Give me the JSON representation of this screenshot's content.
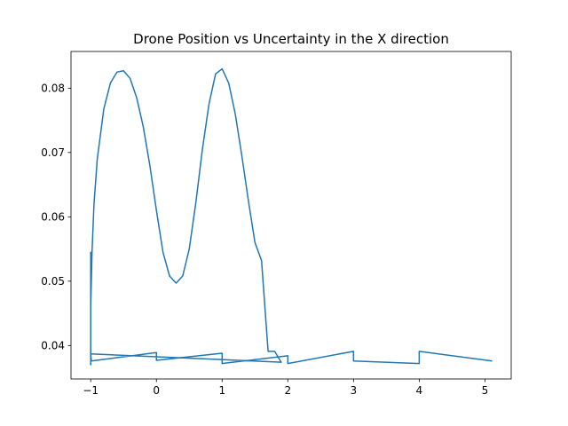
{
  "chart_data": {
    "type": "line",
    "title": "Drone Position vs Uncertainty in the X direction",
    "xlabel": "",
    "ylabel": "",
    "xlim": [
      -1.3,
      5.4
    ],
    "ylim": [
      0.0348,
      0.0857
    ],
    "xticks": [
      -1,
      0,
      1,
      2,
      3,
      4,
      5
    ],
    "xtick_labels": [
      "−1",
      "0",
      "1",
      "2",
      "3",
      "4",
      "5"
    ],
    "yticks": [
      0.04,
      0.05,
      0.06,
      0.07,
      0.08
    ],
    "ytick_labels": [
      "0.04",
      "0.05",
      "0.06",
      "0.07",
      "0.08"
    ],
    "grid": false,
    "legend": "none",
    "series": [
      {
        "color": "#1f77b4",
        "x": [
          -1.0,
          -1.0,
          -1.0,
          -1.0,
          -1.0,
          -1.0,
          -1.0,
          -0.98,
          -0.95,
          -0.9,
          -0.8,
          -0.7,
          -0.6,
          -0.5,
          -0.4,
          -0.3,
          -0.2,
          -0.1,
          0.0,
          0.1,
          0.2,
          0.3,
          0.4,
          0.5,
          0.6,
          0.7,
          0.8,
          0.9,
          1.0,
          1.1,
          1.2,
          1.3,
          1.4,
          1.5,
          1.6,
          1.7,
          1.8,
          1.9,
          -1.0,
          -0.99,
          0.0,
          0.0,
          1.0,
          1.0,
          2.0,
          2.0,
          3.0,
          3.0,
          4.0,
          4.0,
          5.1
        ],
        "y": [
          0.0385,
          0.037,
          0.0545,
          0.038,
          0.054,
          0.045,
          0.046,
          0.0545,
          0.062,
          0.069,
          0.0768,
          0.0808,
          0.0825,
          0.0827,
          0.0815,
          0.0785,
          0.074,
          0.068,
          0.061,
          0.0545,
          0.0508,
          0.0497,
          0.0508,
          0.055,
          0.0622,
          0.0705,
          0.0775,
          0.0822,
          0.083,
          0.0808,
          0.076,
          0.0695,
          0.0625,
          0.056,
          0.0532,
          0.0391,
          0.0391,
          0.0374,
          0.0387,
          0.0376,
          0.0389,
          0.0377,
          0.0388,
          0.0372,
          0.0384,
          0.0372,
          0.0391,
          0.0376,
          0.0372,
          0.0391,
          0.0376
        ]
      }
    ]
  }
}
